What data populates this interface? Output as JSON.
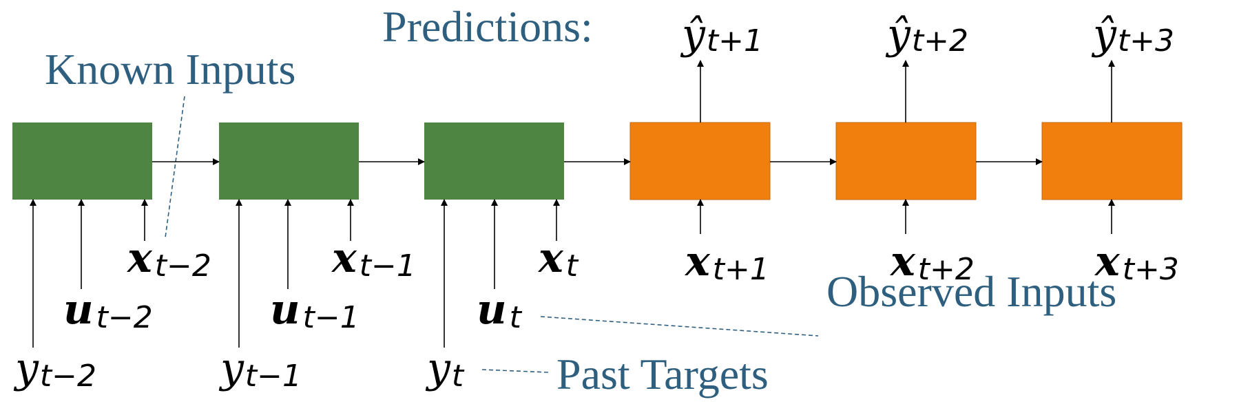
{
  "labels": {
    "predictions": "Predictions:",
    "known_inputs": "Known Inputs",
    "observed_inputs": "Observed Inputs",
    "past_targets": "Past Targets"
  },
  "colors": {
    "past_block": "#4e8542",
    "future_block": "#f07f0d",
    "caption_text": "#2e5f7f"
  },
  "blocks": {
    "past": 3,
    "future": 3
  },
  "variables": {
    "y": "y",
    "y_hat": "ŷ",
    "x": "x",
    "u": "u"
  },
  "subscripts": {
    "t_minus_2": "t−2",
    "t_minus_1": "t−1",
    "t": "t",
    "t_plus_1": "t+1",
    "t_plus_2": "t+2",
    "t_plus_3": "t+3"
  }
}
